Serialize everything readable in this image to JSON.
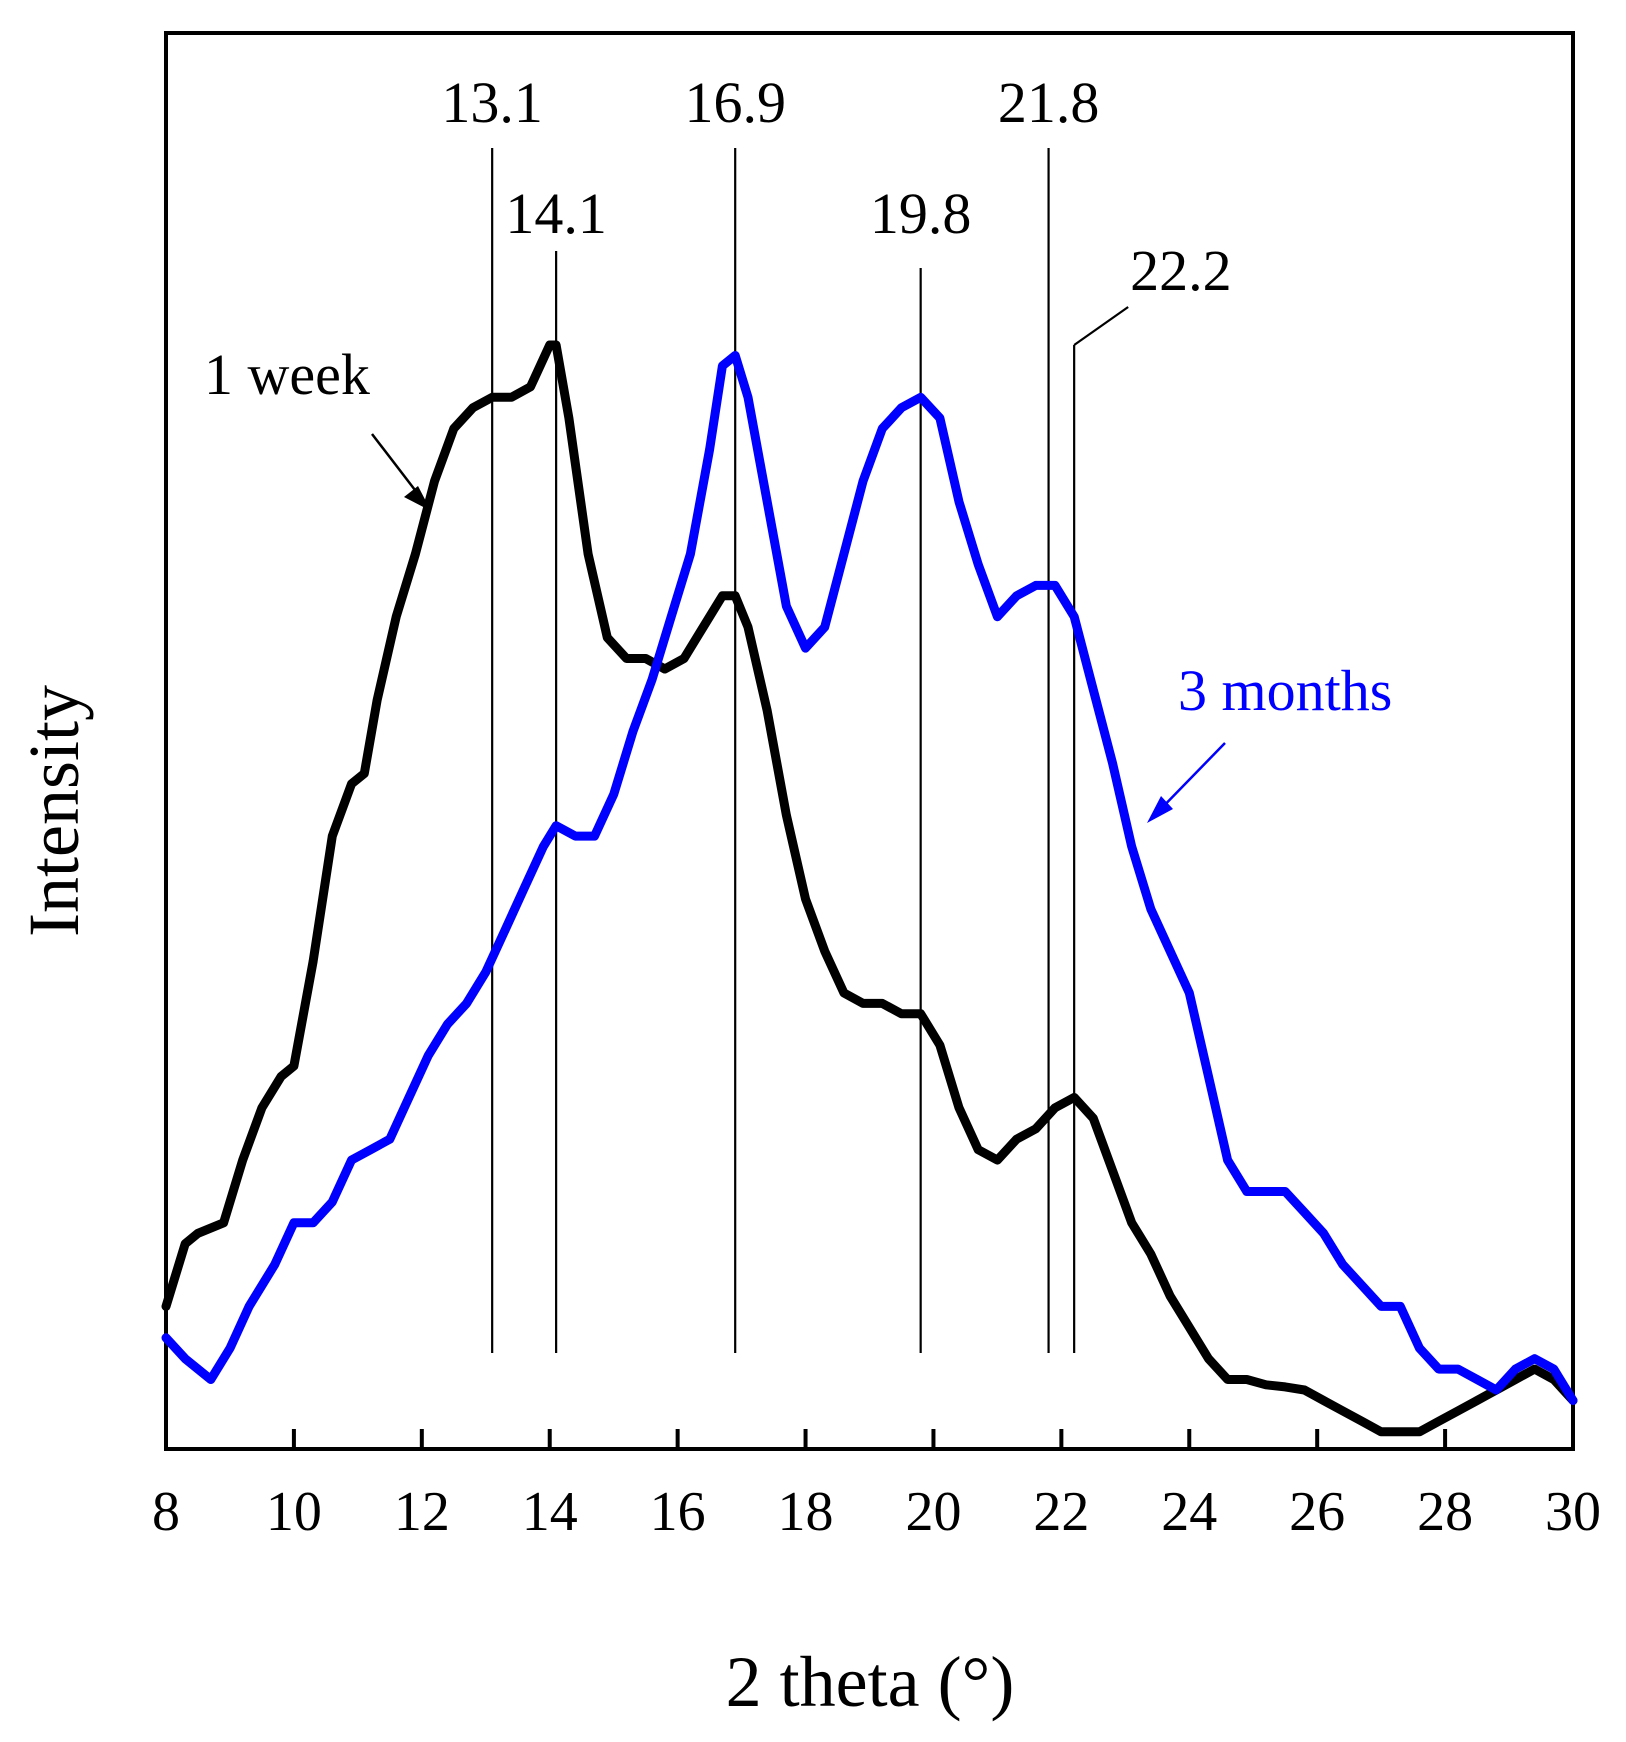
{
  "chart_data": {
    "type": "line",
    "title": "",
    "xlabel": "2 theta (°)",
    "ylabel": "Intensity",
    "xlim": [
      8,
      30
    ],
    "ylim": [
      0,
      100
    ],
    "xticks": [
      8,
      10,
      12,
      14,
      16,
      18,
      20,
      22,
      24,
      26,
      28,
      30
    ],
    "y_tick_labels": false,
    "grid": false,
    "series": [
      {
        "name": "1 week",
        "color": "#000000",
        "x": [
          8.0,
          8.3,
          8.5,
          8.9,
          9.2,
          9.5,
          9.8,
          10.0,
          10.3,
          10.6,
          10.9,
          11.1,
          11.3,
          11.6,
          11.9,
          12.2,
          12.5,
          12.8,
          13.1,
          13.4,
          13.7,
          14.0,
          14.1,
          14.3,
          14.6,
          14.9,
          15.2,
          15.5,
          15.8,
          16.1,
          16.4,
          16.7,
          16.9,
          17.1,
          17.4,
          17.7,
          18.0,
          18.3,
          18.6,
          18.9,
          19.2,
          19.5,
          19.8,
          20.1,
          20.4,
          20.7,
          21.0,
          21.3,
          21.6,
          21.9,
          22.2,
          22.5,
          22.8,
          23.1,
          23.4,
          23.7,
          24.0,
          24.3,
          24.6,
          24.9,
          25.2,
          25.5,
          25.8,
          26.1,
          26.4,
          26.7,
          27.0,
          27.3,
          27.6,
          27.9,
          28.2,
          28.5,
          28.8,
          29.1,
          29.4,
          29.7,
          30.0
        ],
        "values": [
          8,
          14,
          15,
          16,
          22,
          27,
          30,
          31,
          41,
          53,
          58,
          59,
          66,
          74,
          80,
          87,
          92,
          94,
          95,
          95,
          96,
          100,
          100,
          93,
          80,
          72,
          70,
          70,
          69,
          70,
          73,
          76,
          76,
          73,
          65,
          55,
          47,
          42,
          38,
          37,
          37,
          36,
          36,
          33,
          27,
          23,
          22,
          24,
          25,
          27,
          28,
          26,
          21,
          16,
          13,
          9,
          6,
          3,
          1,
          1,
          0.5,
          0.3,
          0,
          -1,
          -2,
          -3,
          -4,
          -4,
          -4,
          -3,
          -2,
          -1,
          0,
          1,
          2,
          1,
          -1
        ]
      },
      {
        "name": "3 months",
        "color": "#0000ff",
        "x": [
          8.0,
          8.3,
          8.7,
          9.0,
          9.3,
          9.7,
          10.0,
          10.3,
          10.6,
          10.9,
          11.2,
          11.5,
          11.8,
          12.1,
          12.4,
          12.7,
          13.0,
          13.3,
          13.6,
          13.9,
          14.1,
          14.4,
          14.7,
          15.0,
          15.3,
          15.6,
          15.9,
          16.2,
          16.5,
          16.7,
          16.9,
          17.1,
          17.4,
          17.7,
          18.0,
          18.3,
          18.6,
          18.9,
          19.2,
          19.5,
          19.8,
          20.1,
          20.4,
          20.7,
          21.0,
          21.3,
          21.6,
          21.9,
          22.2,
          22.5,
          22.8,
          23.1,
          23.4,
          23.7,
          24.0,
          24.3,
          24.6,
          24.9,
          25.2,
          25.5,
          25.8,
          26.1,
          26.4,
          26.7,
          27.0,
          27.3,
          27.6,
          27.9,
          28.2,
          28.5,
          28.8,
          29.1,
          29.4,
          29.7,
          30.0
        ],
        "values": [
          5,
          3,
          1,
          4,
          8,
          12,
          16,
          16,
          18,
          22,
          23,
          24,
          28,
          32,
          35,
          37,
          40,
          44,
          48,
          52,
          54,
          53,
          53,
          57,
          63,
          68,
          74,
          80,
          90,
          98,
          99,
          95,
          85,
          75,
          71,
          73,
          80,
          87,
          92,
          94,
          95,
          93,
          85,
          79,
          74,
          76,
          77,
          77,
          74,
          67,
          60,
          52,
          46,
          42,
          38,
          30,
          22,
          19,
          19,
          19,
          17,
          15,
          12,
          10,
          8,
          8,
          4,
          2,
          2,
          1,
          0,
          2,
          3,
          2,
          -1
        ]
      }
    ],
    "reference_lines": [
      {
        "x": 13.1,
        "label": "13.1"
      },
      {
        "x": 14.1,
        "label": "14.1"
      },
      {
        "x": 16.9,
        "label": "16.9"
      },
      {
        "x": 19.8,
        "label": "19.8"
      },
      {
        "x": 21.8,
        "label": "21.8"
      },
      {
        "x": 22.2,
        "label": "22.2"
      }
    ],
    "annotations": [
      {
        "text": "1 week",
        "series": "1 week",
        "arrow_to_x": 12.2
      },
      {
        "text": "3 months",
        "series": "3 months",
        "arrow_to_x": 23.3
      }
    ]
  }
}
